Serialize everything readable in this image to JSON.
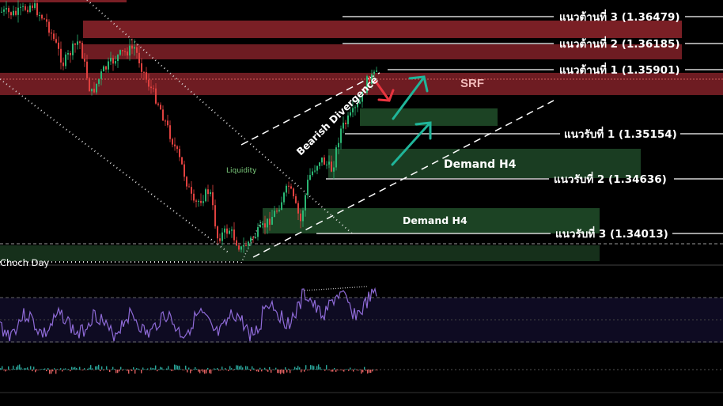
{
  "chart_data": {
    "type": "candlestick",
    "resistance_levels": [
      {
        "label": "แนวต้านที่ 3 (1.36479)",
        "price": 1.36479
      },
      {
        "label": "แนวต้านที่ 2 (1.36185)",
        "price": 1.36185
      },
      {
        "label": "แนวต้านที่ 1 (1.35901)",
        "price": 1.35901
      }
    ],
    "support_levels": [
      {
        "label": "แนวรับที่ 1  (1.35154)",
        "price": 1.35154
      },
      {
        "label": "แนวรับที่ 2  (1.34636)",
        "price": 1.34636
      },
      {
        "label": "แนวรับที่ 3  (1.34013)",
        "price": 1.34013
      }
    ],
    "zones": [
      {
        "label": "SRF",
        "type": "supply"
      },
      {
        "label": "Demand H4",
        "type": "demand"
      },
      {
        "label": "Demand H4",
        "type": "demand"
      }
    ],
    "annotations": {
      "divergence": "Bearish Divergence",
      "liquidity": "Liquidity",
      "choch": "Choch Day"
    },
    "colors": {
      "background": "#000000",
      "supply_zone": "#7a1f25",
      "demand_zone": "#1c4324",
      "up_candle": "#2bb673",
      "down_candle": "#e0413f",
      "rsi_line": "#8f6bd8",
      "arrow_up": "#20b59a",
      "arrow_down": "#e8343f"
    }
  }
}
